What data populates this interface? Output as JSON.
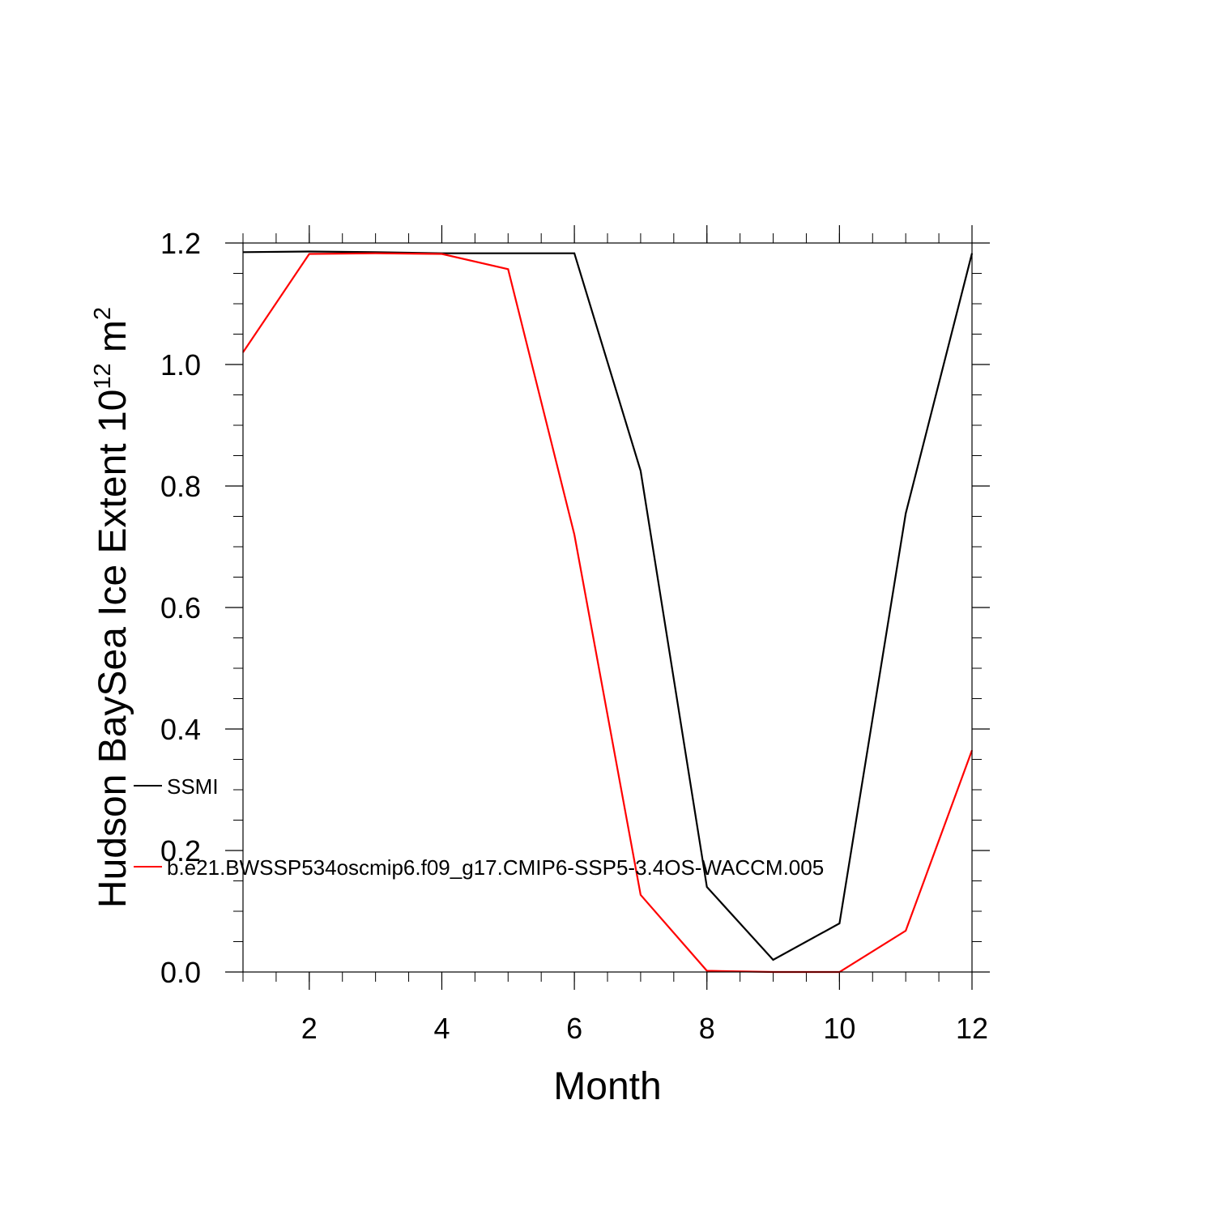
{
  "chart_data": {
    "type": "line",
    "xlabel": "Month",
    "ylabel": {
      "main": "Hudson BaySea Ice Extent 10",
      "sup1": "12",
      "mid": " m",
      "sup2": "2"
    },
    "xlim": [
      1,
      12
    ],
    "ylim": [
      0,
      1.2
    ],
    "x_ticks": [
      2,
      4,
      6,
      8,
      10,
      12
    ],
    "x_tick_labels": [
      "2",
      "4",
      "6",
      "8",
      "10",
      "12"
    ],
    "y_ticks": [
      0,
      0.2,
      0.4,
      0.6,
      0.8,
      1.0,
      1.2
    ],
    "y_tick_labels": [
      "0.0",
      "0.2",
      "0.4",
      "0.6",
      "0.8",
      "1.0",
      "1.2"
    ],
    "x": [
      1,
      2,
      3,
      4,
      5,
      6,
      7,
      8,
      9,
      10,
      11,
      12
    ],
    "series": [
      {
        "name": "SSMI",
        "color": "#000000",
        "values": [
          1.185,
          1.186,
          1.185,
          1.183,
          1.183,
          1.183,
          0.825,
          0.14,
          0.02,
          0.08,
          0.755,
          1.183
        ]
      },
      {
        "name": "b.e21.BWSSP534oscmip6.f09_g17.CMIP6-SSP5-3.4OS-WACCM.005",
        "color": "#ff0000",
        "values": [
          1.02,
          1.182,
          1.183,
          1.182,
          1.157,
          0.72,
          0.127,
          0.002,
          0.0,
          0.0,
          0.068,
          0.365
        ]
      }
    ],
    "grid": false,
    "legend_position": "lower-left, inside plot"
  }
}
